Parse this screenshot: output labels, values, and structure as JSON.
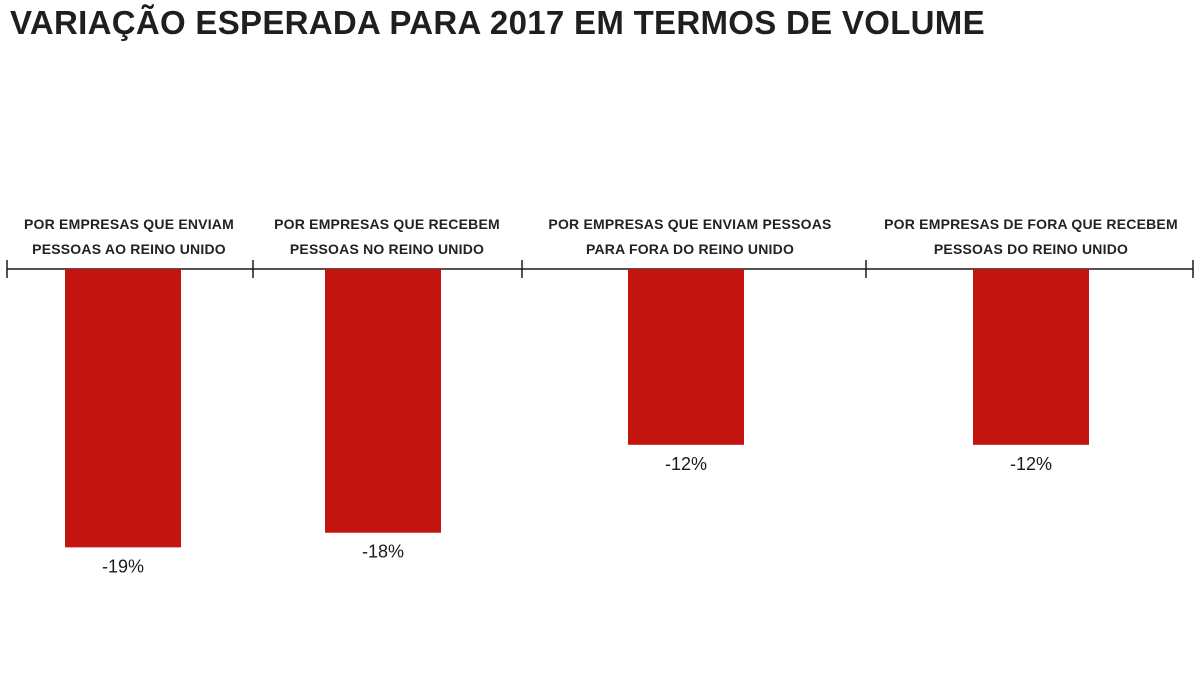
{
  "chart_data": {
    "type": "bar",
    "title": "VARIAÇÃO ESPERADA PARA 2017 EM TERMOS DE VOLUME",
    "categories": [
      [
        "POR EMPRESAS QUE ENVIAM",
        "PESSOAS AO REINO UNIDO"
      ],
      [
        "POR EMPRESAS QUE RECEBEM",
        "PESSOAS NO REINO UNIDO"
      ],
      [
        "POR EMPRESAS QUE ENVIAM PESSOAS",
        "PARA FORA DO REINO UNIDO"
      ],
      [
        "POR EMPRESAS DE FORA QUE RECEBEM",
        "PESSOAS DO REINO UNIDO"
      ]
    ],
    "values": [
      -19,
      -18,
      -12,
      -12
    ],
    "value_labels": [
      "-19%",
      "-18%",
      "-12%",
      "-12%"
    ],
    "unit": "%",
    "bar_color": "#c4140f",
    "axis_color": "#1a1a1a",
    "axis_position": "top",
    "grid": false,
    "legend": "none",
    "ylim": [
      -19,
      0
    ]
  }
}
